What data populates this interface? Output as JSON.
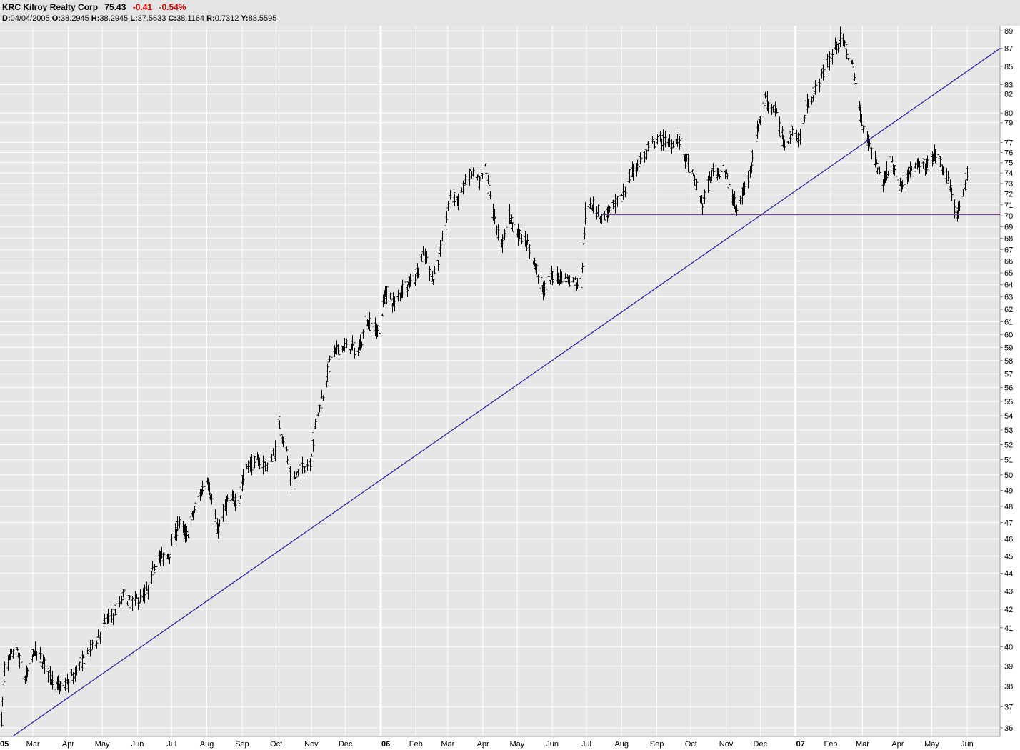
{
  "header": {
    "symbol_name": "KRC Kilroy Realty Corp",
    "last": "75.43",
    "change": "-0.41",
    "change_pct": "-0.54%",
    "ohlc": {
      "d_label": "D:",
      "d": "04/04/2005",
      "o_label": "O:",
      "o": "38.2945",
      "h_label": "H:",
      "h": "38.2945",
      "l_label": "L:",
      "l": "37.5633",
      "c_label": "C:",
      "c": "38.1164",
      "r_label": "R:",
      "r": "0.7312",
      "y_label": "Y:",
      "y": "88.5595"
    }
  },
  "colors": {
    "background": "#e6e6e6",
    "grid": "#ffffff",
    "bars": "#000000",
    "trendline": "#1a1aaa",
    "support": "#6a2a9a",
    "negative": "#e00000"
  },
  "chart_data": {
    "type": "ohlc",
    "x_tick_labels": [
      "05",
      "Mar",
      "Apr",
      "May",
      "Jun",
      "Jul",
      "Aug",
      "Sep",
      "Oct",
      "Nov",
      "Dec",
      "06",
      "Feb",
      "Mar",
      "Apr",
      "May",
      "Jun",
      "Jul",
      "Aug",
      "Sep",
      "Oct",
      "Nov",
      "Dec",
      "07",
      "Feb",
      "Mar",
      "Apr",
      "May",
      "Jun"
    ],
    "x_tick_dates": [
      "2005-01",
      "2005-03",
      "2005-04",
      "2005-05",
      "2005-06",
      "2005-07",
      "2005-08",
      "2005-09",
      "2005-10",
      "2005-11",
      "2005-12",
      "2006-01",
      "2006-02",
      "2006-03",
      "2006-04",
      "2006-05",
      "2006-06",
      "2006-07",
      "2006-08",
      "2006-09",
      "2006-10",
      "2006-11",
      "2006-12",
      "2007-01",
      "2007-02",
      "2007-03",
      "2007-04",
      "2007-05",
      "2007-06"
    ],
    "year_boundaries": [
      "05",
      "06",
      "07"
    ],
    "y_scale": "log",
    "y_ticks": [
      36,
      37,
      38,
      39,
      40,
      41,
      42,
      43,
      44,
      45,
      46,
      47,
      48,
      49,
      50,
      51,
      52,
      53,
      54,
      55,
      56,
      57,
      58,
      59,
      60,
      61,
      62,
      63,
      64,
      65,
      66,
      67,
      68,
      69,
      70,
      71,
      72,
      73,
      74,
      75,
      76,
      77,
      79,
      80,
      82,
      83,
      85,
      87,
      89
    ],
    "ylim": [
      35.6,
      89.6
    ],
    "xlim": [
      "2005-01-31",
      "2007-06-30"
    ],
    "grid": true,
    "y_axis_side": "right",
    "anchors": [
      [
        "2005-02-01",
        36.4
      ],
      [
        "2005-02-04",
        38.9
      ],
      [
        "2005-02-14",
        39.9
      ],
      [
        "2005-02-22",
        38.3
      ],
      [
        "2005-03-02",
        39.8
      ],
      [
        "2005-03-10",
        39.2
      ],
      [
        "2005-03-16",
        38.5
      ],
      [
        "2005-03-24",
        37.9
      ],
      [
        "2005-04-01",
        38.1
      ],
      [
        "2005-04-11",
        39.1
      ],
      [
        "2005-04-18",
        39.6
      ],
      [
        "2005-04-26",
        40.4
      ],
      [
        "2005-05-04",
        41.3
      ],
      [
        "2005-05-12",
        41.9
      ],
      [
        "2005-05-20",
        42.8
      ],
      [
        "2005-05-25",
        42.4
      ],
      [
        "2005-06-02",
        42.5
      ],
      [
        "2005-06-09",
        42.9
      ],
      [
        "2005-06-17",
        44.7
      ],
      [
        "2005-06-29",
        45.2
      ],
      [
        "2005-07-07",
        47.0
      ],
      [
        "2005-07-14",
        46.2
      ],
      [
        "2005-07-22",
        48.0
      ],
      [
        "2005-08-01",
        49.9
      ],
      [
        "2005-08-10",
        46.5
      ],
      [
        "2005-08-18",
        48.2
      ],
      [
        "2005-08-29",
        48.5
      ],
      [
        "2005-09-05",
        50.6
      ],
      [
        "2005-09-15",
        50.9
      ],
      [
        "2005-09-23",
        50.6
      ],
      [
        "2005-09-30",
        51.6
      ],
      [
        "2005-10-03",
        53.6
      ],
      [
        "2005-10-10",
        51.5
      ],
      [
        "2005-10-14",
        49.3
      ],
      [
        "2005-10-21",
        50.3
      ],
      [
        "2005-10-31",
        50.9
      ],
      [
        "2005-11-04",
        53.4
      ],
      [
        "2005-11-11",
        55.5
      ],
      [
        "2005-11-18",
        58.3
      ],
      [
        "2005-11-25",
        58.9
      ],
      [
        "2005-12-05",
        59.2
      ],
      [
        "2005-12-12",
        58.6
      ],
      [
        "2005-12-19",
        61.1
      ],
      [
        "2005-12-30",
        60.2
      ],
      [
        "2006-01-05",
        63.5
      ],
      [
        "2006-01-13",
        62.4
      ],
      [
        "2006-01-20",
        63.8
      ],
      [
        "2006-01-30",
        64.4
      ],
      [
        "2006-02-08",
        66.6
      ],
      [
        "2006-02-16",
        64.5
      ],
      [
        "2006-02-27",
        69.1
      ],
      [
        "2006-03-03",
        72.0
      ],
      [
        "2006-03-10",
        71.3
      ],
      [
        "2006-03-17",
        73.4
      ],
      [
        "2006-03-24",
        74.1
      ],
      [
        "2006-03-29",
        73.0
      ],
      [
        "2006-04-03",
        74.5
      ],
      [
        "2006-04-10",
        70.2
      ],
      [
        "2006-04-17",
        67.2
      ],
      [
        "2006-04-24",
        70.1
      ],
      [
        "2006-05-01",
        68.4
      ],
      [
        "2006-05-08",
        67.8
      ],
      [
        "2006-05-15",
        66.2
      ],
      [
        "2006-05-24",
        63.5
      ],
      [
        "2006-05-31",
        64.6
      ],
      [
        "2006-06-09",
        64.7
      ],
      [
        "2006-06-16",
        64.4
      ],
      [
        "2006-06-26",
        64.2
      ],
      [
        "2006-06-30",
        70.2
      ],
      [
        "2006-07-07",
        71.2
      ],
      [
        "2006-07-14",
        69.8
      ],
      [
        "2006-07-21",
        70.5
      ],
      [
        "2006-07-31",
        71.6
      ],
      [
        "2006-08-08",
        73.6
      ],
      [
        "2006-08-16",
        75.0
      ],
      [
        "2006-08-28",
        76.9
      ],
      [
        "2006-09-04",
        77.2
      ],
      [
        "2006-09-13",
        76.9
      ],
      [
        "2006-09-20",
        77.4
      ],
      [
        "2006-09-27",
        75.2
      ],
      [
        "2006-10-04",
        73.2
      ],
      [
        "2006-10-11",
        71.0
      ],
      [
        "2006-10-19",
        73.9
      ],
      [
        "2006-10-30",
        74.4
      ],
      [
        "2006-11-06",
        71.9
      ],
      [
        "2006-11-10",
        70.4
      ],
      [
        "2006-11-20",
        73.4
      ],
      [
        "2006-11-28",
        78.1
      ],
      [
        "2006-12-05",
        81.5
      ],
      [
        "2006-12-14",
        80.2
      ],
      [
        "2006-12-22",
        76.8
      ],
      [
        "2006-12-29",
        78.3
      ],
      [
        "2007-01-05",
        77.2
      ],
      [
        "2007-01-10",
        80.7
      ],
      [
        "2007-01-19",
        82.6
      ],
      [
        "2007-01-26",
        84.6
      ],
      [
        "2007-02-02",
        86.4
      ],
      [
        "2007-02-09",
        88.1
      ],
      [
        "2007-02-14",
        87.0
      ],
      [
        "2007-02-21",
        84.6
      ],
      [
        "2007-02-27",
        79.7
      ],
      [
        "2007-03-05",
        77.4
      ],
      [
        "2007-03-12",
        75.2
      ],
      [
        "2007-03-19",
        73.1
      ],
      [
        "2007-03-26",
        75.4
      ],
      [
        "2007-04-02",
        72.9
      ],
      [
        "2007-04-10",
        73.9
      ],
      [
        "2007-04-18",
        74.6
      ],
      [
        "2007-04-27",
        74.9
      ],
      [
        "2007-05-04",
        75.9
      ],
      [
        "2007-05-11",
        74.4
      ],
      [
        "2007-05-18",
        72.2
      ],
      [
        "2007-05-23",
        70.0
      ],
      [
        "2007-05-27",
        70.8
      ],
      [
        "2007-05-31",
        73.5
      ],
      [
        "2007-06-04",
        75.4
      ]
    ],
    "annotations": {
      "trendline": [
        [
          "2005-02-11",
          35.6
        ],
        [
          "2007-06-30",
          87.0
        ]
      ],
      "support_line": {
        "value": 70.1,
        "from": "2006-07-15",
        "to": "2007-06-30"
      }
    }
  }
}
